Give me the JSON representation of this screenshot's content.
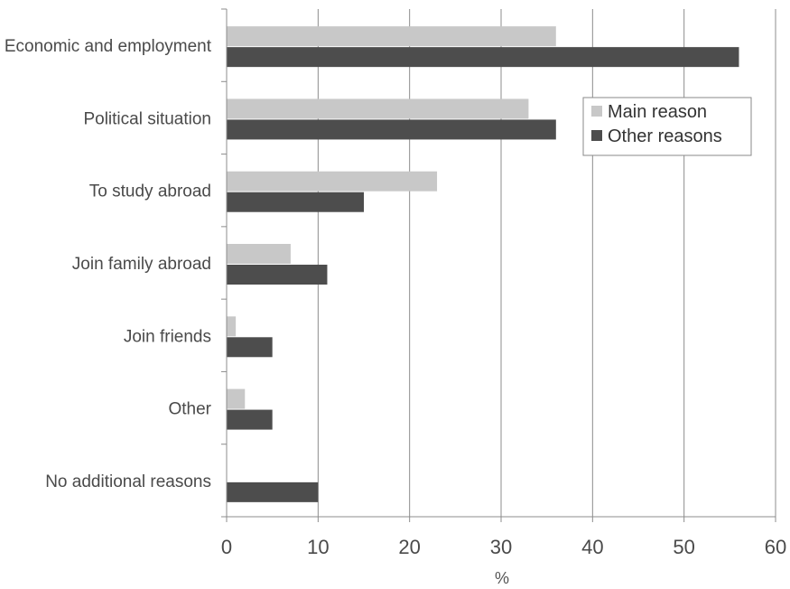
{
  "chart_data": {
    "type": "bar",
    "orientation": "horizontal",
    "categories": [
      "Economic and employment",
      "Political situation",
      "To study abroad",
      "Join family abroad",
      "Join friends",
      "Other",
      "No additional reasons"
    ],
    "series": [
      {
        "name": "Main reason",
        "values": [
          36,
          33,
          23,
          7,
          1,
          2,
          0
        ],
        "color": "#c8c8c8"
      },
      {
        "name": "Other reasons",
        "values": [
          56,
          36,
          15,
          11,
          5,
          5,
          10
        ],
        "color": "#4d4d4d"
      }
    ],
    "xlabel": "%",
    "ylabel": "",
    "xlim": [
      0,
      60
    ],
    "xticks": [
      "0",
      "10",
      "20",
      "30",
      "40",
      "50",
      "60"
    ],
    "grid": true,
    "legend_position": "top-right"
  }
}
